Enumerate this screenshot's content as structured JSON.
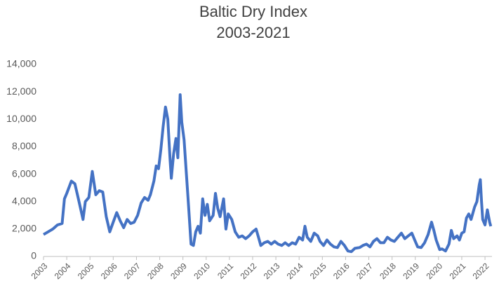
{
  "chart_data": {
    "type": "line",
    "title": "Baltic Dry Index",
    "subtitle": "2003-2021",
    "x": [
      2003.0,
      2003.2,
      2003.4,
      2003.6,
      2003.8,
      2003.9,
      2004.0,
      2004.2,
      2004.35,
      2004.5,
      2004.7,
      2004.8,
      2004.95,
      2005.1,
      2005.25,
      2005.4,
      2005.55,
      2005.7,
      2005.85,
      2006.0,
      2006.15,
      2006.3,
      2006.45,
      2006.6,
      2006.75,
      2006.9,
      2007.05,
      2007.2,
      2007.35,
      2007.5,
      2007.6,
      2007.75,
      2007.85,
      2007.95,
      2008.05,
      2008.15,
      2008.25,
      2008.35,
      2008.45,
      2008.5,
      2008.6,
      2008.7,
      2008.78,
      2008.88,
      2008.95,
      2009.05,
      2009.15,
      2009.25,
      2009.35,
      2009.45,
      2009.55,
      2009.65,
      2009.75,
      2009.85,
      2009.95,
      2010.05,
      2010.15,
      2010.3,
      2010.4,
      2010.5,
      2010.6,
      2010.75,
      2010.85,
      2010.95,
      2011.1,
      2011.25,
      2011.4,
      2011.55,
      2011.7,
      2011.85,
      2012.0,
      2012.15,
      2012.25,
      2012.35,
      2012.5,
      2012.65,
      2012.8,
      2012.95,
      2013.1,
      2013.25,
      2013.4,
      2013.55,
      2013.7,
      2013.85,
      2014.0,
      2014.15,
      2014.25,
      2014.35,
      2014.5,
      2014.65,
      2014.8,
      2014.9,
      2015.05,
      2015.2,
      2015.35,
      2015.5,
      2015.65,
      2015.8,
      2015.95,
      2016.1,
      2016.25,
      2016.4,
      2016.6,
      2016.75,
      2016.9,
      2017.05,
      2017.2,
      2017.35,
      2017.5,
      2017.65,
      2017.8,
      2017.95,
      2018.1,
      2018.25,
      2018.4,
      2018.55,
      2018.7,
      2018.85,
      2018.95,
      2019.1,
      2019.25,
      2019.4,
      2019.55,
      2019.7,
      2019.8,
      2019.9,
      2020.05,
      2020.15,
      2020.3,
      2020.45,
      2020.55,
      2020.65,
      2020.8,
      2020.9,
      2021.0,
      2021.1,
      2021.2,
      2021.3,
      2021.4,
      2021.55,
      2021.65,
      2021.75,
      2021.8,
      2021.85,
      2021.9,
      2022.0,
      2022.1,
      2022.2,
      2022.25
    ],
    "series": [
      {
        "name": "Baltic Dry Index",
        "color": "#4472c4",
        "values": [
          1600,
          1800,
          2000,
          2300,
          2400,
          4200,
          4600,
          5500,
          5300,
          4200,
          2700,
          4000,
          4300,
          6200,
          4500,
          4800,
          4700,
          2900,
          1800,
          2500,
          3200,
          2600,
          2100,
          2700,
          2400,
          2500,
          3000,
          3900,
          4300,
          4100,
          4500,
          5500,
          6600,
          6400,
          7800,
          9500,
          10900,
          10000,
          7000,
          5700,
          7500,
          8600,
          7200,
          11800,
          9800,
          8500,
          6000,
          3500,
          900,
          800,
          1800,
          2200,
          1700,
          4200,
          3000,
          3800,
          2600,
          3000,
          4600,
          3500,
          2900,
          4200,
          2000,
          3100,
          2700,
          1800,
          1400,
          1500,
          1300,
          1500,
          1800,
          2000,
          1400,
          800,
          1000,
          1100,
          900,
          1100,
          900,
          800,
          1000,
          800,
          1000,
          900,
          1400,
          1200,
          2200,
          1400,
          1100,
          1700,
          1500,
          1100,
          800,
          1200,
          900,
          700,
          650,
          1100,
          800,
          400,
          350,
          600,
          650,
          800,
          900,
          700,
          1100,
          1300,
          1000,
          1000,
          1400,
          1200,
          1100,
          1400,
          1700,
          1300,
          1500,
          1700,
          1300,
          700,
          650,
          1000,
          1600,
          2500,
          1900,
          1200,
          500,
          550,
          400,
          900,
          1900,
          1300,
          1500,
          1200,
          1700,
          1800,
          2800,
          3100,
          2700,
          3600,
          4000,
          5200,
          5600,
          4000,
          2700,
          2300,
          3400,
          2500,
          2200
        ]
      }
    ],
    "xlim": [
      2003,
      2022.3
    ],
    "xticks": [
      2003,
      2004,
      2005,
      2006,
      2007,
      2008,
      2009,
      2010,
      2011,
      2012,
      2013,
      2014,
      2015,
      2016,
      2017,
      2018,
      2019,
      2020,
      2021,
      2022
    ],
    "ylim": [
      0,
      14000
    ],
    "yticks": [
      0,
      {
        "value": 2000,
        "label": "2,000"
      },
      {
        "value": 4000,
        "label": "4,000"
      },
      {
        "value": 6000,
        "label": "6,000"
      },
      {
        "value": 8000,
        "label": "8,000"
      },
      {
        "value": 10000,
        "label": "10,000"
      },
      {
        "value": 12000,
        "label": "12,000"
      },
      {
        "value": 14000,
        "label": "14,000"
      }
    ],
    "grid": false
  }
}
